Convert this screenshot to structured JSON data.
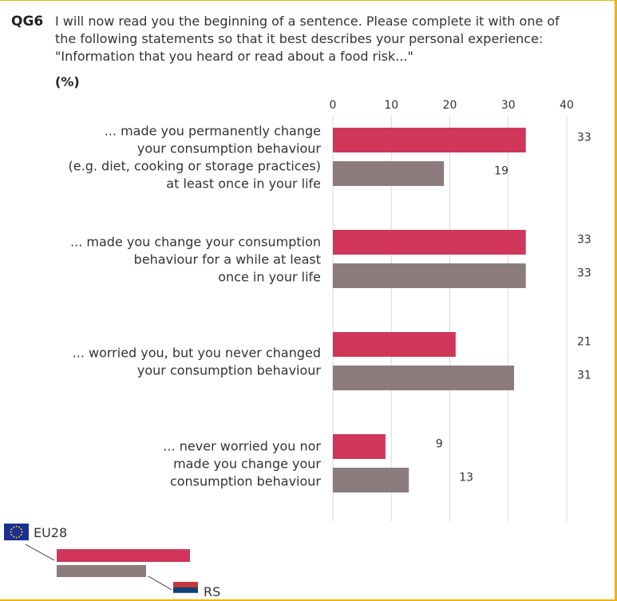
{
  "question": {
    "code": "QG6",
    "lines": [
      "I will now read you the beginning of a sentence. Please complete it with one of",
      "the following statements so that it best describes your personal experience:",
      "\"Information that you heard or read about a food risk...\""
    ],
    "unit": "(%)"
  },
  "colors": {
    "eu28": "#d0365a",
    "rs": "#8c7b7d",
    "border": "#f2b400",
    "grid": "#d8d8d8"
  },
  "chart_data": {
    "type": "bar",
    "orientation": "horizontal",
    "xlim": [
      0,
      40
    ],
    "ticks": [
      "0",
      "10",
      "20",
      "30",
      "40"
    ],
    "grid": true,
    "legend_placement": "bottom-left",
    "categories": [
      [
        "... made you permanently change",
        "your consumption behaviour",
        "(e.g. diet, cooking or storage practices)",
        "at least once in your life"
      ],
      [
        "... made you change your consumption",
        "behaviour for a while at least",
        "once in your life"
      ],
      [
        "... worried you, but you never changed",
        "your consumption behaviour"
      ],
      [
        "... never worried you nor",
        "made you change your",
        "consumption behaviour"
      ]
    ],
    "series": [
      {
        "name": "EU28",
        "color": "#d0365a",
        "values": [
          33,
          33,
          21,
          9
        ]
      },
      {
        "name": "RS",
        "color": "#8c7b7d",
        "values": [
          19,
          33,
          31,
          13
        ]
      }
    ]
  }
}
